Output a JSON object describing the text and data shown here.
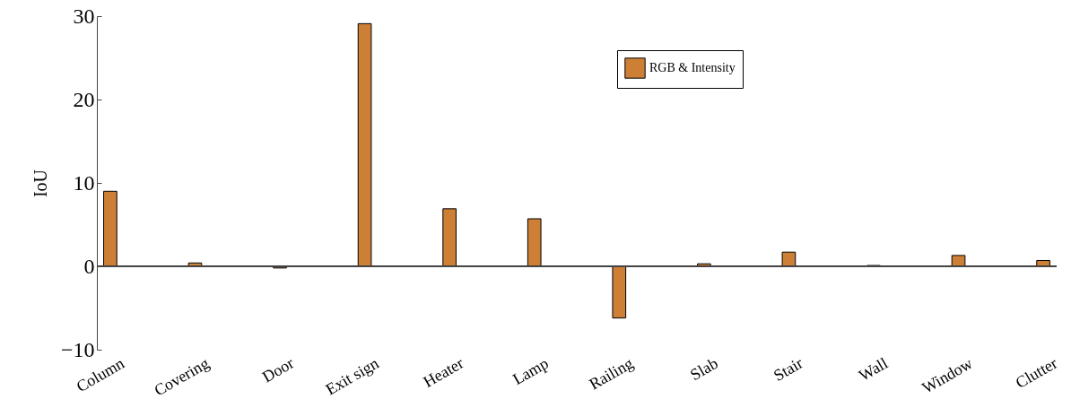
{
  "chart_data": {
    "type": "bar",
    "ylabel": "IoU",
    "categories": [
      "Column",
      "Covering",
      "Door",
      "Exit sign",
      "Heater",
      "Lamp",
      "Railing",
      "Slab",
      "Stair",
      "Wall",
      "Window",
      "Clutter"
    ],
    "series": [
      {
        "name": "RGB & Intensity",
        "color": "#cd7f35",
        "values": [
          9.0,
          0.4,
          -0.2,
          29.1,
          6.9,
          5.7,
          -6.2,
          0.3,
          1.7,
          0.1,
          1.3,
          0.7
        ]
      }
    ],
    "ylim": [
      -10,
      30
    ],
    "yticks": [
      -10,
      0,
      10,
      20,
      30
    ],
    "legend": "top right"
  }
}
